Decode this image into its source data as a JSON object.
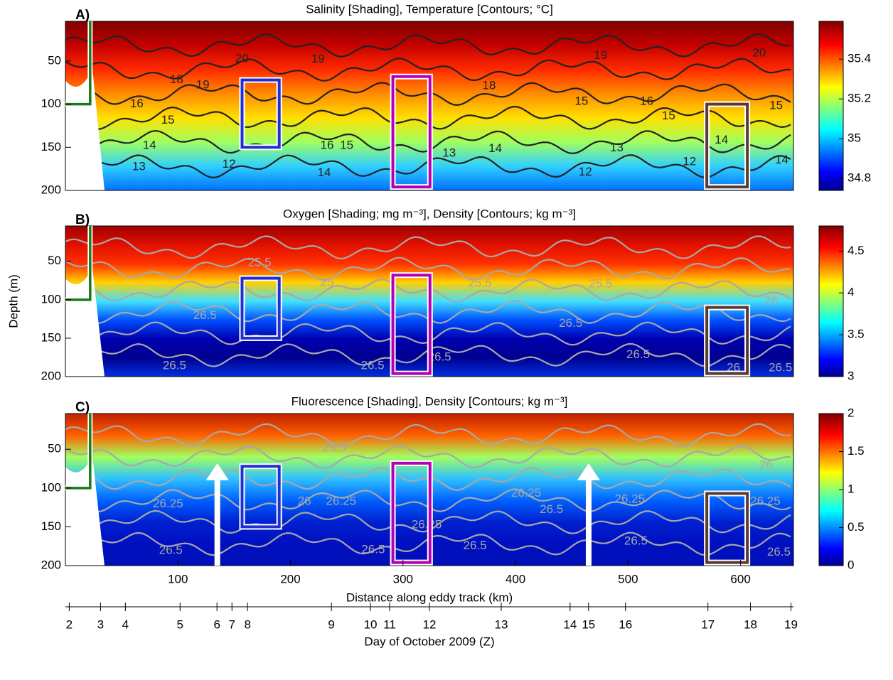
{
  "chart_data": [
    {
      "type": "contour",
      "panel_label": "A)",
      "title": "Salinity [Shading], Temperature [Contours; °C]",
      "xlim": [
        0,
        647
      ],
      "ylim": [
        4,
        200
      ],
      "y_inverted": true,
      "yticks": [
        50,
        100,
        150,
        200
      ],
      "clim": [
        34.74,
        35.59
      ],
      "cticks": [
        34.8,
        35,
        35.2,
        35.4
      ],
      "colormap": "jet",
      "contour_color": "#222222",
      "shading": [
        "#7f0000",
        "#c40000",
        "#ff2a00",
        "#ff8c00",
        "#ffe000",
        "#a0ff60",
        "#30d0ff",
        "#0070ff"
      ],
      "contour_labels": [
        {
          "text": "20",
          "x": 156.9,
          "y": 47.7
        },
        {
          "text": "19",
          "x": 122,
          "y": 78
        },
        {
          "text": "18",
          "x": 98.8,
          "y": 72
        },
        {
          "text": "16",
          "x": 63.4,
          "y": 100
        },
        {
          "text": "15",
          "x": 91,
          "y": 119
        },
        {
          "text": "14",
          "x": 74.7,
          "y": 148
        },
        {
          "text": "13",
          "x": 65.3,
          "y": 173
        },
        {
          "text": "12",
          "x": 145.4,
          "y": 170
        },
        {
          "text": "19",
          "x": 224.4,
          "y": 48
        },
        {
          "text": "16",
          "x": 232.5,
          "y": 148
        },
        {
          "text": "15",
          "x": 250,
          "y": 148
        },
        {
          "text": "14",
          "x": 230,
          "y": 180
        },
        {
          "text": "13",
          "x": 341,
          "y": 157
        },
        {
          "text": "18",
          "x": 376.5,
          "y": 79
        },
        {
          "text": "14",
          "x": 382,
          "y": 152
        },
        {
          "text": "15",
          "x": 458.6,
          "y": 97
        },
        {
          "text": "12",
          "x": 462,
          "y": 179
        },
        {
          "text": "13",
          "x": 490,
          "y": 151
        },
        {
          "text": "16",
          "x": 516.6,
          "y": 97
        },
        {
          "text": "15",
          "x": 536,
          "y": 114
        },
        {
          "text": "12",
          "x": 554.6,
          "y": 167
        },
        {
          "text": "14",
          "x": 583,
          "y": 142
        },
        {
          "text": "15",
          "x": 631.6,
          "y": 102
        },
        {
          "text": "14",
          "x": 636.6,
          "y": 165
        },
        {
          "text": "20",
          "x": 616.5,
          "y": 41
        },
        {
          "text": "19",
          "x": 475.6,
          "y": 44
        }
      ],
      "boxes": [
        {
          "color": "#1f2fd0",
          "x": [
            157,
            190
          ],
          "y": [
            72,
            150
          ]
        },
        {
          "color": "#b400b4",
          "x": [
            291,
            324
          ],
          "y": [
            68,
            196
          ]
        },
        {
          "color": "#5a3a32",
          "x": [
            570,
            606
          ],
          "y": [
            100,
            196
          ]
        }
      ],
      "marker": {
        "x": 22,
        "y": 100,
        "color": "#1a7a1a"
      }
    },
    {
      "type": "contour",
      "panel_label": "B)",
      "title": "Oxygen [Shading; mg m⁻³], Density [Contours; kg m⁻³]",
      "ylabel": "Depth (m)",
      "xlim": [
        0,
        647
      ],
      "ylim": [
        4,
        200
      ],
      "y_inverted": true,
      "yticks": [
        50,
        100,
        150,
        200
      ],
      "clim": [
        3,
        4.8
      ],
      "cticks": [
        3,
        3.5,
        4,
        4.5
      ],
      "colormap": "jet",
      "contour_color": "#a8a8a8",
      "shading": [
        "#a00000",
        "#e01000",
        "#ff3000",
        "#ffd000",
        "#40e0ff",
        "#0050ff",
        "#0000b0",
        "#00008f",
        "#0030e0"
      ],
      "contour_labels": [
        {
          "text": "25.5",
          "x": 172.6,
          "y": 52
        },
        {
          "text": "25.5",
          "x": 368.3,
          "y": 79
        },
        {
          "text": "26.5",
          "x": 124,
          "y": 121
        },
        {
          "text": "26.5",
          "x": 96.9,
          "y": 186
        },
        {
          "text": "26.5",
          "x": 273,
          "y": 186
        },
        {
          "text": "25",
          "x": 232.6,
          "y": 78
        },
        {
          "text": "26.5",
          "x": 332.4,
          "y": 175
        },
        {
          "text": "26.5",
          "x": 449,
          "y": 131
        },
        {
          "text": "26.5",
          "x": 509,
          "y": 172
        },
        {
          "text": "25.5",
          "x": 475.6,
          "y": 80
        },
        {
          "text": "26",
          "x": 593.7,
          "y": 189
        },
        {
          "text": "26.5",
          "x": 635.4,
          "y": 189
        },
        {
          "text": "26",
          "x": 627,
          "y": 102
        }
      ],
      "boxes": [
        {
          "color": "#1f2fd0",
          "x": [
            157,
            190
          ],
          "y": [
            72,
            150
          ]
        },
        {
          "color": "#b400b4",
          "x": [
            291,
            324
          ],
          "y": [
            68,
            196
          ]
        },
        {
          "color": "#5a3a32",
          "x": [
            570,
            606
          ],
          "y": [
            110,
            196
          ]
        }
      ],
      "marker": {
        "x": 22,
        "y": 100,
        "color": "#1a7a1a"
      }
    },
    {
      "type": "contour",
      "panel_label": "C)",
      "title": "Fluorescence [Shading], Density [Contours; kg m⁻³]",
      "xlabel": "Distance along eddy track (km)",
      "xlim": [
        0,
        647
      ],
      "xticks": [
        100,
        200,
        300,
        400,
        500,
        600
      ],
      "ylim": [
        4,
        200
      ],
      "y_inverted": true,
      "yticks": [
        50,
        100,
        150,
        200
      ],
      "clim": [
        0,
        2
      ],
      "cticks": [
        0,
        0.5,
        1,
        1.5,
        2
      ],
      "colormap": "jet",
      "contour_color": "#a8a8a8",
      "shading": [
        "#c02000",
        "#ff6000",
        "#a0ff60",
        "#30c0ff",
        "#0060ff",
        "#0020d0",
        "#0010c0",
        "#0010b8"
      ],
      "contour_labels": [
        {
          "text": "26.25",
          "x": 91.2,
          "y": 121
        },
        {
          "text": "26",
          "x": 212.4,
          "y": 117.5
        },
        {
          "text": "26.25",
          "x": 245,
          "y": 117.5
        },
        {
          "text": "26.5",
          "x": 93.7,
          "y": 181
        },
        {
          "text": "26.25",
          "x": 321,
          "y": 148
        },
        {
          "text": "26.5",
          "x": 273.5,
          "y": 180
        },
        {
          "text": "26.5",
          "x": 364,
          "y": 175
        },
        {
          "text": "26.25",
          "x": 409.4,
          "y": 107
        },
        {
          "text": "26.5",
          "x": 432,
          "y": 128
        },
        {
          "text": "26.25",
          "x": 501.6,
          "y": 115
        },
        {
          "text": "26.5",
          "x": 507,
          "y": 169
        },
        {
          "text": "26.25",
          "x": 622,
          "y": 117.5
        },
        {
          "text": "26.5",
          "x": 634,
          "y": 183
        },
        {
          "text": "26",
          "x": 622.7,
          "y": 71
        },
        {
          "text": "25.5",
          "x": 238.9,
          "y": 49
        }
      ],
      "boxes": [
        {
          "color": "#1f2fd0",
          "x": [
            157,
            190
          ],
          "y": [
            72,
            150
          ]
        },
        {
          "color": "#b400b4",
          "x": [
            291,
            324
          ],
          "y": [
            68,
            196
          ]
        },
        {
          "color": "#5a3a32",
          "x": [
            570,
            606
          ],
          "y": [
            107,
            196
          ]
        }
      ],
      "marker": {
        "x": 22,
        "y": 100,
        "color": "#1a7a1a"
      },
      "arrows": [
        {
          "x": 135,
          "y": [
            200,
            68
          ]
        },
        {
          "x": 465,
          "y": [
            200,
            68
          ]
        }
      ]
    },
    {
      "type": "axis",
      "xlabel": "Day of October 2009 (Z)",
      "xlim": [
        0,
        647
      ],
      "xticks": [
        {
          "value": 3.4,
          "label": "2"
        },
        {
          "value": 31.2,
          "label": "3"
        },
        {
          "value": 53.3,
          "label": "4"
        },
        {
          "value": 101.9,
          "label": "5"
        },
        {
          "value": 134.7,
          "label": "6"
        },
        {
          "value": 148,
          "label": "7"
        },
        {
          "value": 161.9,
          "label": "8"
        },
        {
          "value": 236.4,
          "label": "9"
        },
        {
          "value": 271.1,
          "label": "10"
        },
        {
          "value": 288.1,
          "label": "11"
        },
        {
          "value": 323.5,
          "label": "12"
        },
        {
          "value": 387.3,
          "label": "13"
        },
        {
          "value": 448.5,
          "label": "14"
        },
        {
          "value": 464.9,
          "label": "15"
        },
        {
          "value": 497.7,
          "label": "16"
        },
        {
          "value": 571,
          "label": "17"
        },
        {
          "value": 608.8,
          "label": "18"
        },
        {
          "value": 644.8,
          "label": "19"
        }
      ]
    }
  ]
}
